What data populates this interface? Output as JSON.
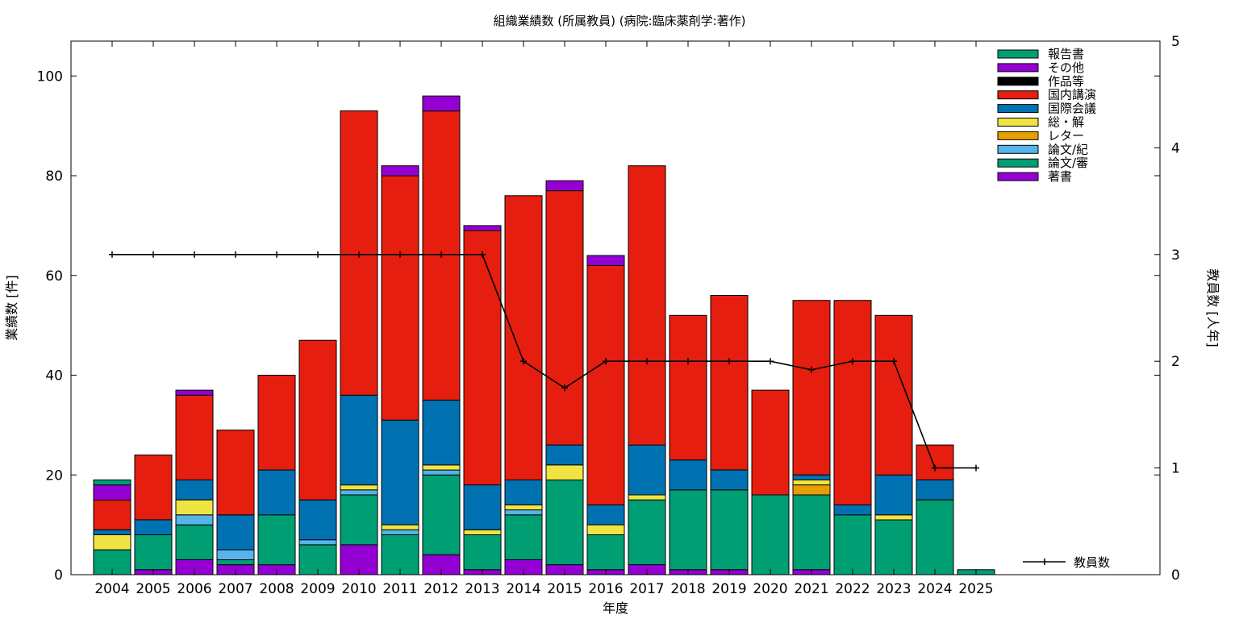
{
  "chart_data": {
    "type": "bar",
    "stacked": true,
    "title": "組織業績数 (所属教員) (病院:臨床薬剤学:著作)",
    "xlabel": "年度",
    "ylabel": "業績数 [件]",
    "y2label": "教員数 [人年]",
    "ylim": [
      0,
      107
    ],
    "y2lim": [
      0,
      5
    ],
    "yticks": [
      0,
      20,
      40,
      60,
      80,
      100
    ],
    "y2ticks": [
      0,
      1,
      2,
      3,
      4,
      5
    ],
    "legend_position": "top-right",
    "categories": [
      "2004",
      "2005",
      "2006",
      "2007",
      "2008",
      "2009",
      "2010",
      "2011",
      "2012",
      "2013",
      "2014",
      "2015",
      "2016",
      "2017",
      "2018",
      "2019",
      "2020",
      "2021",
      "2022",
      "2023",
      "2024",
      "2025"
    ],
    "series": [
      {
        "name": "著書",
        "color": "#9400d3",
        "values": [
          0,
          1,
          3,
          2,
          2,
          0,
          6,
          0,
          4,
          1,
          3,
          2,
          1,
          2,
          1,
          1,
          0,
          1,
          0,
          0,
          0,
          0
        ]
      },
      {
        "name": "論文/審",
        "color": "#009e73",
        "values": [
          5,
          7,
          7,
          1,
          10,
          6,
          10,
          8,
          16,
          7,
          9,
          17,
          7,
          13,
          16,
          16,
          16,
          15,
          12,
          11,
          15,
          1
        ]
      },
      {
        "name": "論文/紀",
        "color": "#56b4e9",
        "values": [
          0,
          0,
          2,
          2,
          0,
          1,
          1,
          1,
          1,
          0,
          1,
          0,
          0,
          0,
          0,
          0,
          0,
          0,
          0,
          0,
          0,
          0
        ]
      },
      {
        "name": "レター",
        "color": "#e69f00",
        "values": [
          0,
          0,
          0,
          0,
          0,
          0,
          0,
          0,
          0,
          0,
          0,
          0,
          0,
          0,
          0,
          0,
          0,
          2,
          0,
          0,
          0,
          0
        ]
      },
      {
        "name": "総・解",
        "color": "#f0e442",
        "values": [
          3,
          0,
          3,
          0,
          0,
          0,
          1,
          1,
          1,
          1,
          1,
          3,
          2,
          1,
          0,
          0,
          0,
          1,
          0,
          1,
          0,
          0
        ]
      },
      {
        "name": "国際会議",
        "color": "#0072b2",
        "values": [
          1,
          3,
          4,
          7,
          9,
          8,
          18,
          21,
          13,
          9,
          5,
          4,
          4,
          10,
          6,
          4,
          0,
          1,
          2,
          8,
          4,
          0
        ]
      },
      {
        "name": "国内講演",
        "color": "#e51e10",
        "values": [
          6,
          13,
          17,
          17,
          19,
          32,
          57,
          49,
          58,
          51,
          57,
          51,
          48,
          56,
          29,
          35,
          21,
          35,
          41,
          32,
          7,
          0
        ]
      },
      {
        "name": "作品等",
        "color": "#000000",
        "values": [
          0,
          0,
          0,
          0,
          0,
          0,
          0,
          0,
          0,
          0,
          0,
          0,
          0,
          0,
          0,
          0,
          0,
          0,
          0,
          0,
          0,
          0
        ]
      },
      {
        "name": "その他",
        "color": "#9400d3",
        "values": [
          3,
          0,
          1,
          0,
          0,
          0,
          0,
          2,
          3,
          1,
          0,
          2,
          2,
          0,
          0,
          0,
          0,
          0,
          0,
          0,
          0,
          0
        ]
      },
      {
        "name": "報告書",
        "color": "#009e73",
        "values": [
          1,
          0,
          0,
          0,
          0,
          0,
          0,
          0,
          0,
          0,
          0,
          0,
          0,
          0,
          0,
          0,
          0,
          0,
          0,
          0,
          0,
          0
        ]
      }
    ],
    "line_series": {
      "name": "教員数",
      "color": "#000000",
      "axis": "right",
      "values": [
        3,
        3,
        3,
        3,
        3,
        3,
        3,
        3,
        3,
        3,
        2,
        1.75,
        2,
        2,
        2,
        2,
        2,
        1.92,
        2,
        2,
        1,
        1
      ]
    }
  }
}
